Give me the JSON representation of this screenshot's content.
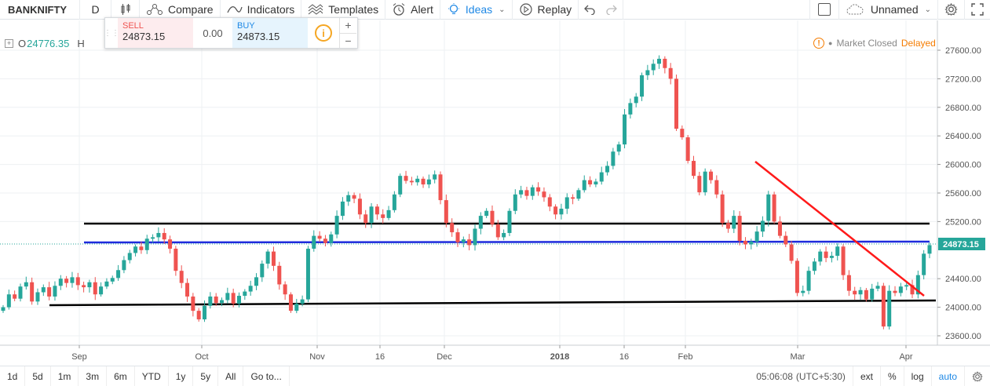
{
  "toolbar": {
    "symbol": "BANKNIFTY",
    "interval": "D",
    "compare": "Compare",
    "indicators": "Indicators",
    "templates": "Templates",
    "alert": "Alert",
    "ideas": "Ideas",
    "replay": "Replay",
    "layout_name": "Unnamed"
  },
  "ohlc": {
    "prefix": "O",
    "open": "24776.35",
    "high_prefix": "H"
  },
  "trade_panel": {
    "sell_label": "SELL",
    "sell_price": "24873.15",
    "spread": "0.00",
    "buy_label": "BUY",
    "buy_price": "24873.15",
    "plus": "+",
    "minus": "−"
  },
  "market_status": {
    "closed": "Market Closed",
    "delayed": "Delayed"
  },
  "price_axis": {
    "labels": [
      "27600.00",
      "27200.00",
      "26800.00",
      "26400.00",
      "26000.00",
      "25600.00",
      "25200.00",
      "24400.00",
      "24000.00",
      "23600.00"
    ],
    "current_price": "24873.15"
  },
  "time_axis": {
    "labels": [
      "Sep",
      "Oct",
      "Nov",
      "16",
      "Dec",
      "2018",
      "16",
      "Feb",
      "Mar",
      "Apr"
    ]
  },
  "bottom_bar": {
    "ranges": [
      "1d",
      "5d",
      "1m",
      "3m",
      "6m",
      "YTD",
      "1y",
      "5y",
      "All"
    ],
    "goto": "Go to...",
    "time": "05:06:08",
    "timezone": "(UTC+5:30)",
    "ext": "ext",
    "percent": "%",
    "log": "log",
    "auto": "auto"
  },
  "colors": {
    "up": "#26a69a",
    "down": "#ef5350",
    "support_resistance": "#000000",
    "current_line": "#1e2bdc",
    "trendline": "#ff1a1a",
    "accent": "#1e88e5"
  },
  "chart_data": {
    "type": "candlestick",
    "symbol": "BANKNIFTY",
    "interval": "D",
    "ylim": [
      23400,
      27800
    ],
    "y_ticks": [
      23600,
      24000,
      24400,
      25200,
      25600,
      26000,
      26400,
      26800,
      27200,
      27600
    ],
    "x_ticks": [
      "Sep",
      "Oct",
      "Nov",
      "16",
      "Dec",
      "2018",
      "16",
      "Feb",
      "Mar",
      "Apr"
    ],
    "current_price": 24873.15,
    "closes": [
      24000,
      24180,
      24120,
      24290,
      24350,
      24080,
      24210,
      24280,
      24150,
      24300,
      24400,
      24340,
      24420,
      24310,
      24280,
      24350,
      24180,
      24290,
      24360,
      24410,
      24520,
      24660,
      24760,
      24850,
      24800,
      24960,
      24980,
      25040,
      24950,
      24820,
      24510,
      24340,
      24150,
      23950,
      23830,
      24020,
      24150,
      24060,
      24100,
      24200,
      24050,
      24160,
      24220,
      24300,
      24420,
      24610,
      24780,
      24580,
      24320,
      24180,
      23950,
      24050,
      24110,
      24820,
      25000,
      24960,
      24900,
      25020,
      25280,
      25480,
      25570,
      25520,
      25300,
      25180,
      25410,
      25300,
      25250,
      25360,
      25580,
      25840,
      25770,
      25750,
      25800,
      25720,
      25790,
      25860,
      25500,
      25180,
      25050,
      24910,
      24950,
      24870,
      25100,
      25280,
      25350,
      25160,
      24980,
      25040,
      25350,
      25580,
      25640,
      25560,
      25680,
      25620,
      25540,
      25410,
      25300,
      25380,
      25540,
      25520,
      25640,
      25780,
      25720,
      25760,
      25890,
      25980,
      26180,
      26280,
      26700,
      26860,
      26950,
      27250,
      27320,
      27410,
      27480,
      27350,
      27200,
      26500,
      26380,
      26050,
      25840,
      25610,
      25900,
      25780,
      25580,
      25180,
      25100,
      25280,
      24930,
      24880,
      24920,
      25060,
      25210,
      25580,
      25200,
      25000,
      24880,
      24650,
      24200,
      24230,
      24510,
      24640,
      24780,
      24690,
      24720,
      24850,
      24450,
      24230,
      24180,
      24240,
      24110,
      24260,
      24300,
      23730,
      24230,
      24200,
      24290,
      24310,
      24180,
      24450,
      24750,
      24870
    ]
  }
}
